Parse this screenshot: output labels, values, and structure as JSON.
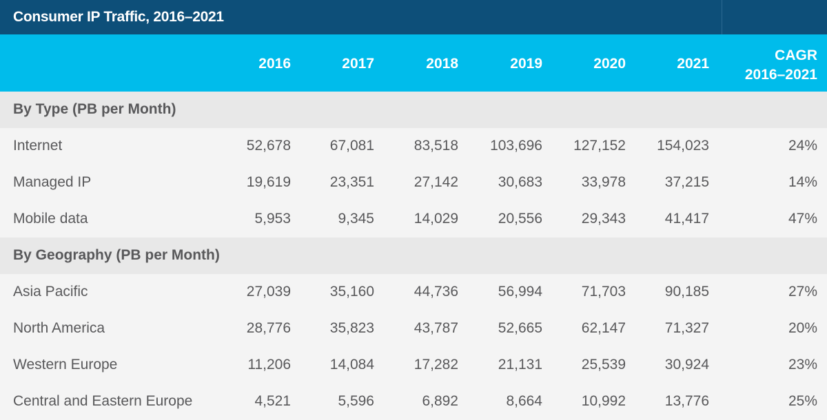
{
  "chart_data": {
    "type": "table",
    "title": "Consumer IP Traffic, 2016–2021",
    "columns": [
      "2016",
      "2017",
      "2018",
      "2019",
      "2020",
      "2021"
    ],
    "cagr_header": [
      "CAGR",
      "2016–2021"
    ],
    "sections": [
      {
        "label": "By Type (PB per Month)",
        "rows": [
          {
            "label": "Internet",
            "values": [
              "52,678",
              "67,081",
              "83,518",
              "103,696",
              "127,152",
              "154,023"
            ],
            "cagr": "24%"
          },
          {
            "label": "Managed IP",
            "values": [
              "19,619",
              "23,351",
              "27,142",
              "30,683",
              "33,978",
              "37,215"
            ],
            "cagr": "14%"
          },
          {
            "label": "Mobile data",
            "values": [
              "5,953",
              "9,345",
              "14,029",
              "20,556",
              "29,343",
              "41,417"
            ],
            "cagr": "47%"
          }
        ]
      },
      {
        "label": "By Geography (PB per Month)",
        "rows": [
          {
            "label": "Asia Pacific",
            "values": [
              "27,039",
              "35,160",
              "44,736",
              "56,994",
              "71,703",
              "90,185"
            ],
            "cagr": "27%"
          },
          {
            "label": "North America",
            "values": [
              "28,776",
              "35,823",
              "43,787",
              "52,665",
              "62,147",
              "71,327"
            ],
            "cagr": "20%"
          },
          {
            "label": "Western Europe",
            "values": [
              "11,206",
              "14,084",
              "17,282",
              "21,131",
              "25,539",
              "30,924"
            ],
            "cagr": "23%"
          },
          {
            "label": "Central and Eastern Europe",
            "values": [
              "4,521",
              "5,596",
              "6,892",
              "8,664",
              "10,992",
              "13,776"
            ],
            "cagr": "25%"
          }
        ]
      }
    ]
  },
  "colors": {
    "title_bg": "#0d4f79",
    "header_bg": "#00bceb",
    "section_bg": "#e8e8e8",
    "row_bg": "#f4f4f4",
    "text": "#58585a"
  }
}
